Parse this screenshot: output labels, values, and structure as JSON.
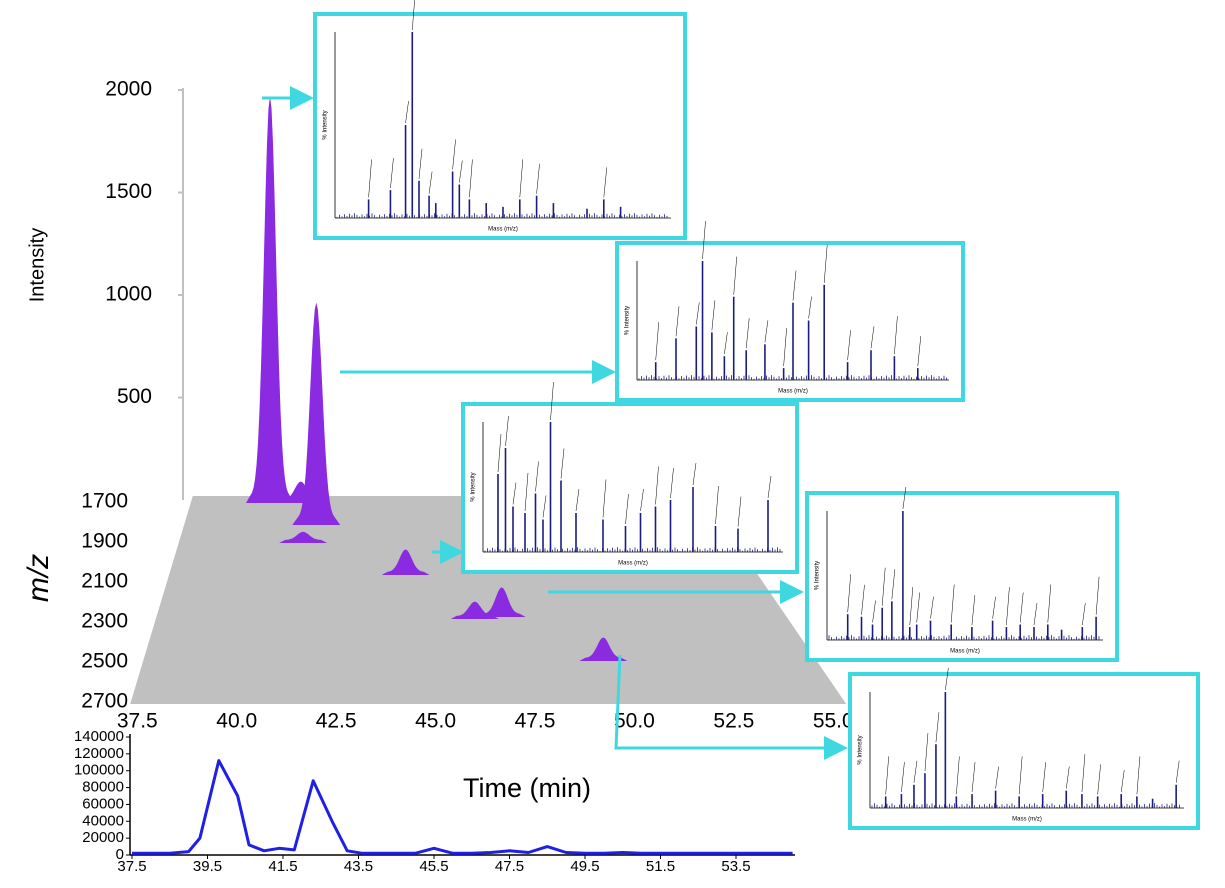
{
  "chart_data": [
    {
      "type": "peaks3d",
      "x_label": "Time (min)",
      "y_label": "Intensity",
      "z_label": "m/z",
      "xlim": [
        37.5,
        55.0
      ],
      "xticks": [
        37.5,
        {
          "value": 40,
          "label": "40.0"
        },
        42.5,
        {
          "value": 45,
          "label": "45.0"
        },
        47.5,
        {
          "value": 50,
          "label": "50.0"
        },
        52.5,
        {
          "value": 55,
          "label": "55.0"
        }
      ],
      "zlim": [
        1700,
        2700
      ],
      "zticks": [
        1700,
        1900,
        2100,
        2300,
        2500,
        2700
      ],
      "ylim": [
        0,
        2000
      ],
      "yticks": [
        500,
        1000,
        1500,
        2000
      ],
      "color": "#8a2be2",
      "peaks": {
        "x": [
          40.0,
          41.1,
          41.7,
          41.3,
          44.6,
          46.5,
          47.3,
          49.8
        ],
        "z": [
          1700,
          1700,
          1810,
          1900,
          2060,
          2280,
          2270,
          2490
        ],
        "values": [
          1970,
          90,
          1070,
          40,
          110,
          70,
          130,
          100
        ]
      },
      "spectra": [
        {
          "x_label": "Mass (m/z)",
          "y_label": "% Intensity",
          "ylim": [
            0,
            100
          ],
          "xlim": [
            0,
            2000
          ],
          "x": [
            200,
            330,
            420,
            460,
            500,
            560,
            600,
            700,
            740,
            800,
            900,
            1000,
            1100,
            1200,
            1300,
            1500,
            1600,
            1700
          ],
          "values": [
            10,
            15,
            50,
            100,
            20,
            12,
            8,
            25,
            18,
            10,
            8,
            6,
            10,
            12,
            8,
            5,
            10,
            6
          ]
        },
        {
          "x_label": "Mass (m/z)",
          "y_label": "% Intensity",
          "ylim": [
            0,
            100
          ],
          "xlim": [
            0,
            2000
          ],
          "x": [
            120,
            250,
            380,
            420,
            480,
            560,
            620,
            700,
            820,
            940,
            1000,
            1100,
            1200,
            1350,
            1500,
            1650,
            1800
          ],
          "values": [
            15,
            35,
            45,
            100,
            40,
            20,
            70,
            25,
            30,
            10,
            65,
            50,
            80,
            15,
            25,
            20,
            10
          ]
        },
        {
          "x_label": "Mass (m/z)",
          "y_label": "% Intensity",
          "ylim": [
            0,
            100
          ],
          "xlim": [
            0,
            2000
          ],
          "x": [
            100,
            150,
            200,
            280,
            350,
            400,
            450,
            520,
            620,
            800,
            950,
            1050,
            1150,
            1250,
            1400,
            1550,
            1700,
            1900
          ],
          "values": [
            60,
            80,
            35,
            30,
            45,
            25,
            100,
            55,
            30,
            25,
            20,
            30,
            35,
            40,
            50,
            20,
            18,
            40
          ]
        },
        {
          "x_label": "Mass (m/z)",
          "y_label": "% Intensity",
          "ylim": [
            0,
            100
          ],
          "xlim": [
            0,
            2000
          ],
          "x": [
            150,
            250,
            330,
            400,
            470,
            550,
            600,
            650,
            750,
            900,
            1050,
            1200,
            1300,
            1400,
            1500,
            1600,
            1700,
            1850,
            1950
          ],
          "values": [
            20,
            18,
            12,
            25,
            30,
            100,
            10,
            12,
            15,
            12,
            10,
            15,
            10,
            12,
            10,
            12,
            8,
            10,
            18
          ]
        },
        {
          "x_label": "Mass (m/z)",
          "y_label": "% Intensity",
          "ylim": [
            0,
            100
          ],
          "xlim": [
            0,
            2000
          ],
          "x": [
            100,
            200,
            280,
            350,
            420,
            480,
            550,
            650,
            800,
            950,
            1100,
            1250,
            1350,
            1450,
            1600,
            1700,
            1800,
            1950
          ],
          "values": [
            10,
            12,
            20,
            30,
            55,
            100,
            10,
            12,
            15,
            10,
            12,
            15,
            12,
            10,
            12,
            10,
            8,
            20
          ]
        }
      ]
    },
    {
      "type": "line",
      "color": "#1f1fe6",
      "xlim": [
        37.5,
        55.0
      ],
      "xticks": [
        37.5,
        39.5,
        41.5,
        43.5,
        45.5,
        47.5,
        49.5,
        51.5,
        53.5
      ],
      "ylim": [
        0,
        140000
      ],
      "yticks": [
        0,
        20000,
        40000,
        60000,
        80000,
        100000,
        120000,
        140000
      ],
      "x": [
        37.5,
        38,
        38.5,
        39,
        39.3,
        39.8,
        40.3,
        40.6,
        41,
        41.4,
        41.8,
        42.3,
        42.8,
        43.2,
        43.6,
        44,
        44.5,
        45,
        45.5,
        46,
        46.5,
        47,
        47.5,
        48,
        48.5,
        49,
        49.5,
        50,
        50.5,
        51,
        51.5,
        52,
        52.5,
        53,
        53.5,
        54,
        54.5,
        55
      ],
      "values": [
        2000,
        2000,
        2000,
        4000,
        20000,
        112000,
        70000,
        12000,
        5000,
        8000,
        6000,
        88000,
        40000,
        5000,
        2000,
        2000,
        2000,
        2000,
        8000,
        2000,
        2000,
        3000,
        5000,
        3000,
        10000,
        3000,
        2000,
        2000,
        3000,
        2000,
        2000,
        2000,
        2000,
        2000,
        2000,
        2000,
        2000,
        2000
      ]
    }
  ]
}
